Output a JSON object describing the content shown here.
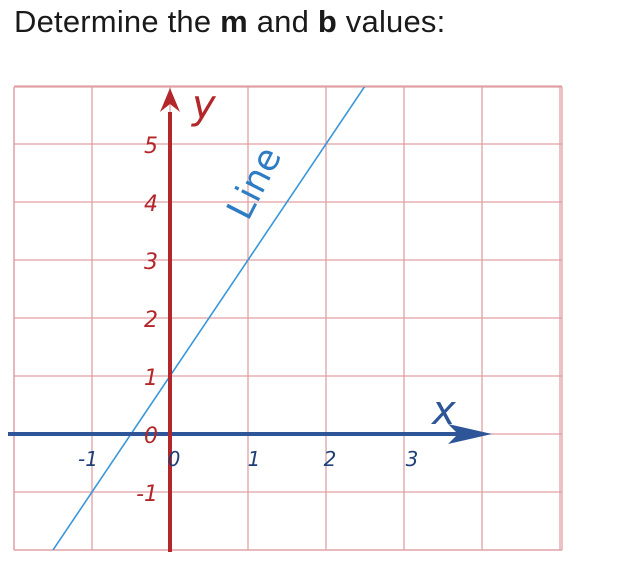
{
  "prompt": {
    "prefix": "Determine the ",
    "m": "m",
    "middle": " and ",
    "b": "b",
    "suffix": " values:"
  },
  "graph": {
    "x_axis_name": "x",
    "y_axis_name": "y",
    "line_label": "Line",
    "x_tick_labels": [
      {
        "value": -1,
        "label": "-1"
      },
      {
        "value": 0,
        "label": "0"
      },
      {
        "value": 1,
        "label": "1"
      },
      {
        "value": 2,
        "label": "2"
      },
      {
        "value": 3,
        "label": "3"
      }
    ],
    "y_tick_labels": [
      {
        "value": -1,
        "label": "-1"
      },
      {
        "value": 0,
        "label": "0"
      },
      {
        "value": 1,
        "label": "1"
      },
      {
        "value": 2,
        "label": "2"
      },
      {
        "value": 3,
        "label": "3"
      },
      {
        "value": 4,
        "label": "4"
      },
      {
        "value": 5,
        "label": "5"
      }
    ],
    "x_range": [
      -2,
      5
    ],
    "y_range": [
      -2,
      6
    ],
    "line": {
      "slope": 2,
      "intercept": 1
    },
    "colors": {
      "grid": "#e0a0a4",
      "x_axis": "#2e5597",
      "y_axis": "#b3262a",
      "line": "#3a96d8",
      "line_label": "#2d7cc4"
    }
  }
}
